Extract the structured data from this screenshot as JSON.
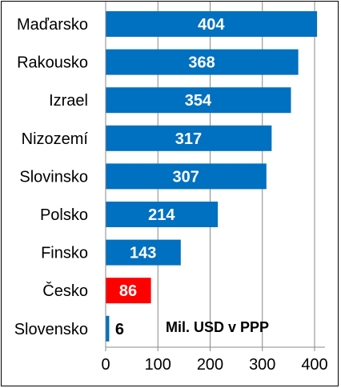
{
  "chart_data": {
    "type": "bar",
    "orientation": "horizontal",
    "categories": [
      "Maďarsko",
      "Rakousko",
      "Izrael",
      "Nizozemí",
      "Slovinsko",
      "Polsko",
      "Finsko",
      "Česko",
      "Slovensko"
    ],
    "values": [
      404,
      368,
      354,
      317,
      307,
      214,
      143,
      86,
      6
    ],
    "value_labels": [
      "404",
      "368",
      "354",
      "317",
      "307",
      "214",
      "143",
      "86",
      "6"
    ],
    "colors": [
      "#0070c0",
      "#0070c0",
      "#0070c0",
      "#0070c0",
      "#0070c0",
      "#0070c0",
      "#0070c0",
      "#ff0000",
      "#0070c0"
    ],
    "xticks": [
      0,
      100,
      200,
      300,
      400
    ],
    "xtick_labels": [
      "0",
      "100",
      "200",
      "300",
      "400"
    ],
    "xlim": [
      0,
      420
    ],
    "grid": "vertical",
    "unit_annotation": "Mil.  USD v PPP"
  }
}
